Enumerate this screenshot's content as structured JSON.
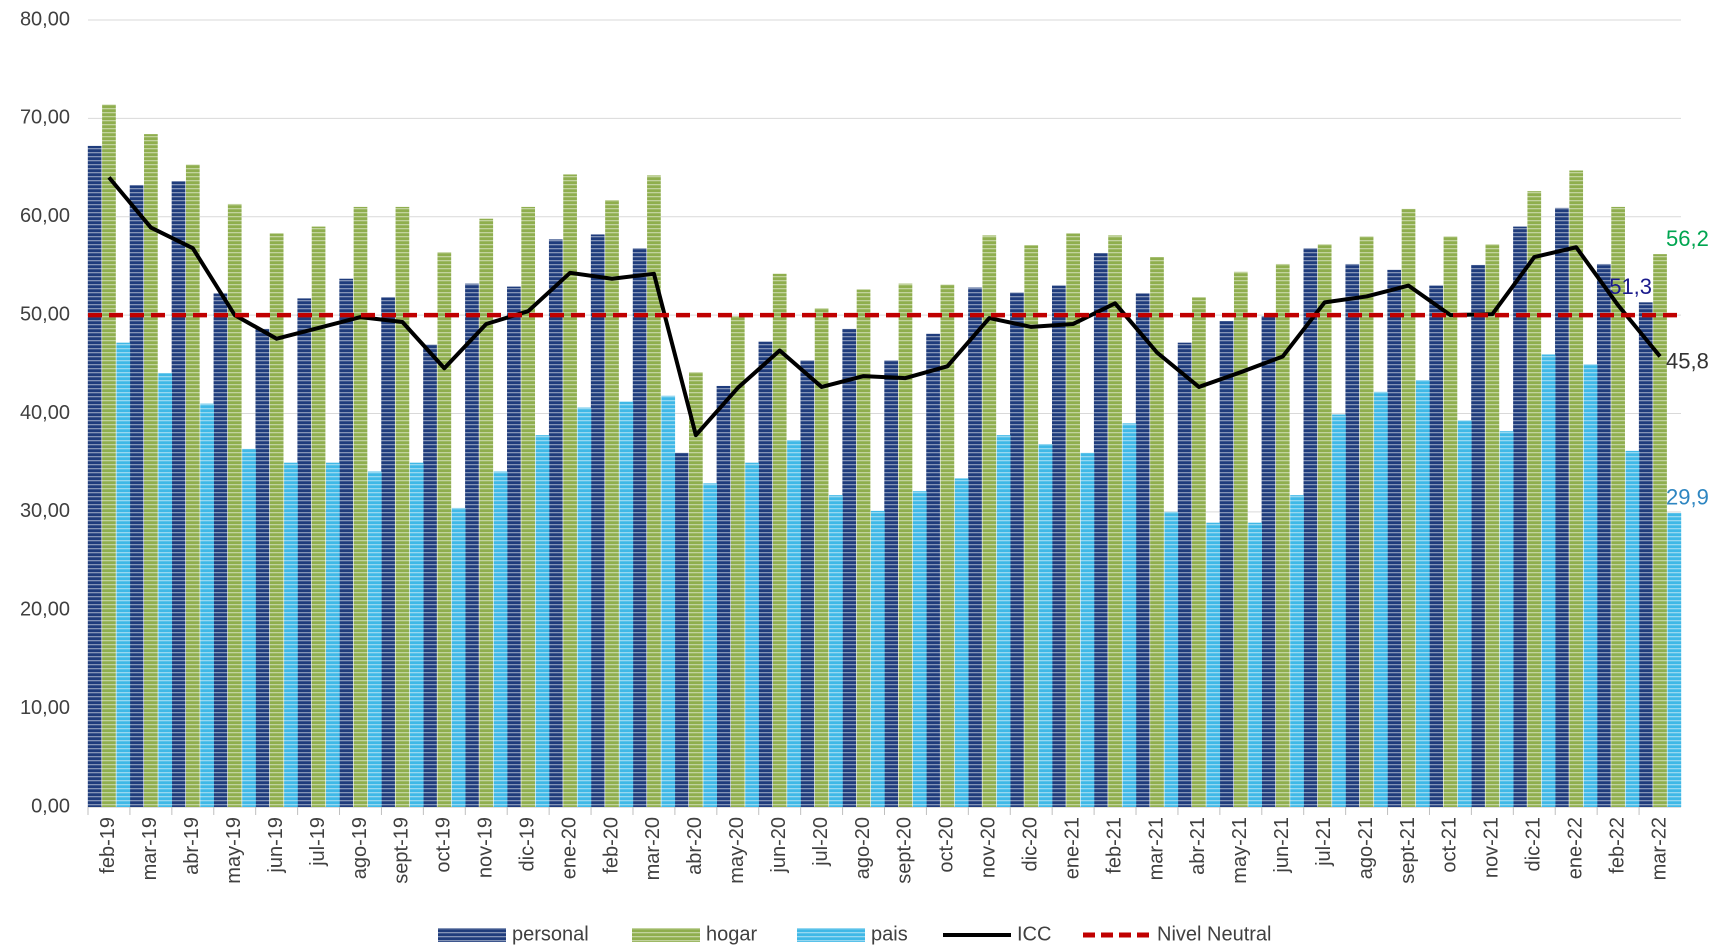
{
  "chart_data": {
    "type": "bar",
    "categories": [
      "feb-19",
      "mar-19",
      "abr-19",
      "may-19",
      "jun-19",
      "jul-19",
      "ago-19",
      "sept-19",
      "oct-19",
      "nov-19",
      "dic-19",
      "ene-20",
      "feb-20",
      "mar-20",
      "abr-20",
      "may-20",
      "jun-20",
      "jul-20",
      "ago-20",
      "sept-20",
      "oct-20",
      "nov-20",
      "dic-20",
      "ene-21",
      "feb-21",
      "mar-21",
      "abr-21",
      "may-21",
      "jun-21",
      "jul-21",
      "ago-21",
      "sept-21",
      "oct-21",
      "nov-21",
      "dic-21",
      "ene-22",
      "feb-22",
      "mar-22"
    ],
    "series": [
      {
        "name": "personal",
        "kind": "bar",
        "color": "#1f3c7c",
        "label_color": "#1a1a8c",
        "values": [
          67.2,
          63.2,
          63.6,
          52.2,
          48.6,
          51.7,
          53.7,
          51.8,
          47.0,
          53.2,
          52.9,
          57.7,
          58.2,
          56.8,
          36.0,
          42.8,
          47.3,
          45.4,
          48.6,
          45.4,
          48.1,
          52.8,
          52.3,
          53.0,
          56.3,
          52.2,
          47.2,
          49.4,
          49.9,
          56.8,
          55.2,
          54.6,
          53.0,
          55.1,
          59.0,
          60.9,
          55.2,
          51.3
        ],
        "value_labels": [
          null,
          null,
          null,
          null,
          null,
          null,
          null,
          null,
          null,
          null,
          null,
          null,
          null,
          null,
          null,
          null,
          null,
          null,
          null,
          null,
          null,
          null,
          null,
          null,
          null,
          null,
          null,
          null,
          null,
          null,
          null,
          null,
          null,
          null,
          null,
          null,
          null,
          "51,3"
        ]
      },
      {
        "name": "hogar",
        "kind": "bar",
        "color": "#8fae4e",
        "label_color": "#00a550",
        "values": [
          71.4,
          68.4,
          65.3,
          61.3,
          58.3,
          59.0,
          61.0,
          61.0,
          56.4,
          59.8,
          61.0,
          64.3,
          61.7,
          64.2,
          44.2,
          49.9,
          54.2,
          50.7,
          52.6,
          53.2,
          53.1,
          58.1,
          57.1,
          58.3,
          58.1,
          55.9,
          51.8,
          54.4,
          55.2,
          57.2,
          58.0,
          60.8,
          58.0,
          57.2,
          62.6,
          64.7,
          61.0,
          56.2
        ],
        "value_labels": [
          null,
          null,
          null,
          null,
          null,
          null,
          null,
          null,
          null,
          null,
          null,
          null,
          null,
          null,
          null,
          null,
          null,
          null,
          null,
          null,
          null,
          null,
          null,
          null,
          null,
          null,
          null,
          null,
          null,
          null,
          null,
          null,
          null,
          null,
          null,
          null,
          null,
          "56,2"
        ]
      },
      {
        "name": "pais",
        "kind": "bar",
        "color": "#3fb8e6",
        "label_color": "#2e86c1",
        "values": [
          47.2,
          44.1,
          41.0,
          36.4,
          35.0,
          35.0,
          34.1,
          35.0,
          30.4,
          34.1,
          37.8,
          40.6,
          41.2,
          41.8,
          32.9,
          35.0,
          37.3,
          31.7,
          30.1,
          32.1,
          33.4,
          37.8,
          36.9,
          36.0,
          39.0,
          30.0,
          28.9,
          28.9,
          31.7,
          39.9,
          42.2,
          43.4,
          39.3,
          38.2,
          46.0,
          45.0,
          36.2,
          29.9
        ],
        "value_labels": [
          null,
          null,
          null,
          null,
          null,
          null,
          null,
          null,
          null,
          null,
          null,
          null,
          null,
          null,
          null,
          null,
          null,
          null,
          null,
          null,
          null,
          null,
          null,
          null,
          null,
          null,
          null,
          null,
          null,
          null,
          null,
          null,
          null,
          null,
          null,
          null,
          null,
          "29,9"
        ]
      },
      {
        "name": "ICC",
        "kind": "line",
        "color": "#000000",
        "label_color": "#333333",
        "values": [
          64.0,
          58.9,
          56.8,
          50.0,
          47.6,
          48.7,
          49.8,
          49.3,
          44.6,
          49.1,
          50.4,
          54.3,
          53.7,
          54.2,
          37.8,
          42.6,
          46.4,
          42.7,
          43.8,
          43.6,
          44.8,
          49.7,
          48.8,
          49.1,
          51.2,
          46.2,
          42.7,
          44.2,
          45.8,
          51.3,
          51.9,
          53.0,
          50.0,
          50.1,
          55.9,
          56.9,
          51.0,
          45.8
        ],
        "value_labels": [
          null,
          null,
          null,
          null,
          null,
          null,
          null,
          null,
          null,
          null,
          null,
          null,
          null,
          null,
          null,
          null,
          null,
          null,
          null,
          null,
          null,
          null,
          null,
          null,
          null,
          null,
          null,
          null,
          null,
          null,
          null,
          null,
          null,
          null,
          null,
          null,
          null,
          "45,8"
        ]
      },
      {
        "name": "Nivel Neutral",
        "kind": "dashed",
        "color": "#c00000",
        "values": [
          50,
          50,
          50,
          50,
          50,
          50,
          50,
          50,
          50,
          50,
          50,
          50,
          50,
          50,
          50,
          50,
          50,
          50,
          50,
          50,
          50,
          50,
          50,
          50,
          50,
          50,
          50,
          50,
          50,
          50,
          50,
          50,
          50,
          50,
          50,
          50,
          50,
          50
        ]
      }
    ],
    "ylim": [
      0,
      80
    ],
    "yticks": [
      {
        "value": 0,
        "label": "0,00"
      },
      {
        "value": 10,
        "label": "10,00"
      },
      {
        "value": 20,
        "label": "20,00"
      },
      {
        "value": 30,
        "label": "30,00"
      },
      {
        "value": 40,
        "label": "40,00"
      },
      {
        "value": 50,
        "label": "50,00"
      },
      {
        "value": 60,
        "label": "60,00"
      },
      {
        "value": 70,
        "label": "70,00"
      },
      {
        "value": 80,
        "label": "80,00"
      }
    ],
    "grid": true,
    "legend": "bottom"
  }
}
